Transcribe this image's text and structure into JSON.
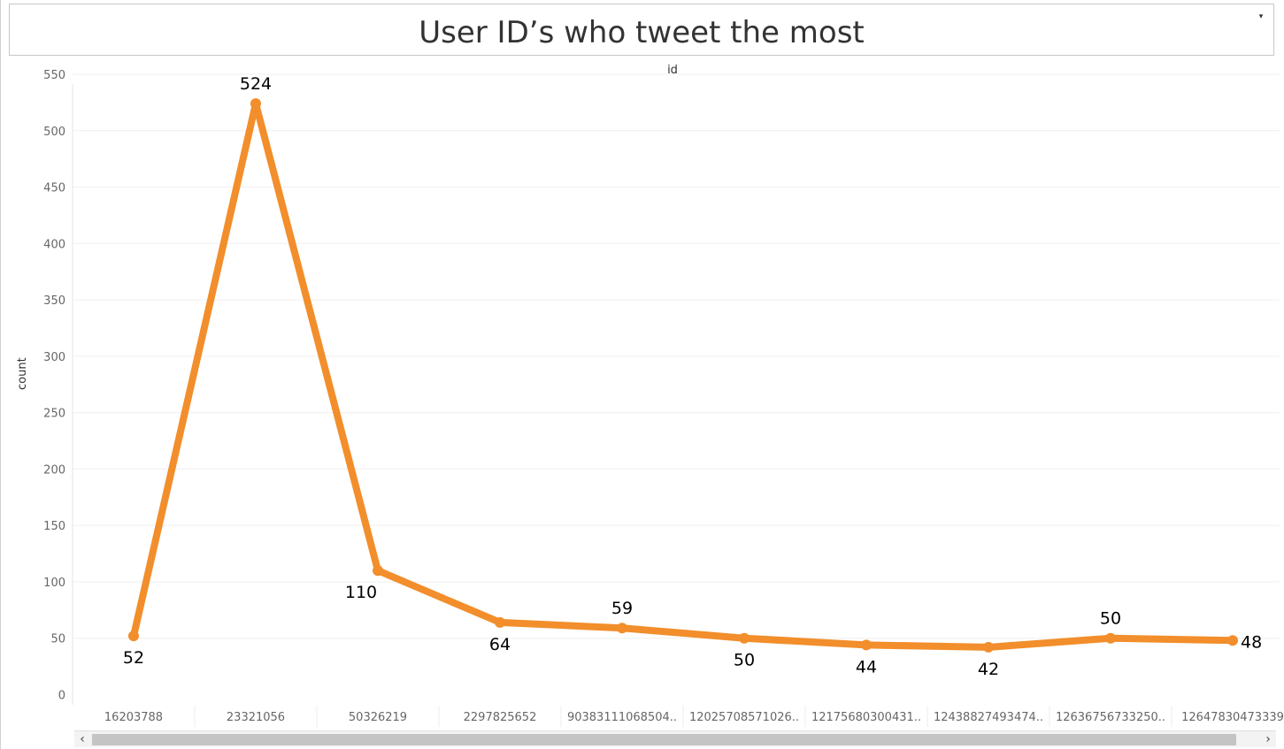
{
  "title": "User ID’s who tweet the most",
  "dropdown_icon": "▾",
  "scroll": {
    "left_icon": "‹",
    "right_icon": "›"
  },
  "colors": {
    "line": "#F28E2B",
    "grid": "#EFEFEF",
    "axis_text": "#666666",
    "label_text": "#000000"
  },
  "chart_data": {
    "type": "line",
    "title": "User ID’s who tweet the most",
    "xlabel": "id",
    "ylabel": "count",
    "categories": [
      "16203788",
      "23321056",
      "50326219",
      "2297825652",
      "90383111068504..",
      "12025708571026..",
      "12175680300431..",
      "12438827493474..",
      "12636756733250..",
      "12647830473339"
    ],
    "series": [
      {
        "values": [
          52,
          524,
          110,
          64,
          59,
          50,
          44,
          42,
          50,
          48
        ]
      }
    ],
    "data_labels": [
      "52",
      "524",
      "110",
      "64",
      "59",
      "50",
      "44",
      "42",
      "50",
      "48"
    ],
    "label_positions": [
      "below",
      "above",
      "below",
      "below",
      "above",
      "below",
      "below",
      "below",
      "above",
      "right"
    ],
    "y_ticks": [
      0,
      50,
      100,
      150,
      200,
      250,
      300,
      350,
      400,
      450,
      500,
      550
    ],
    "ylim": [
      0,
      550
    ],
    "grid": true
  }
}
